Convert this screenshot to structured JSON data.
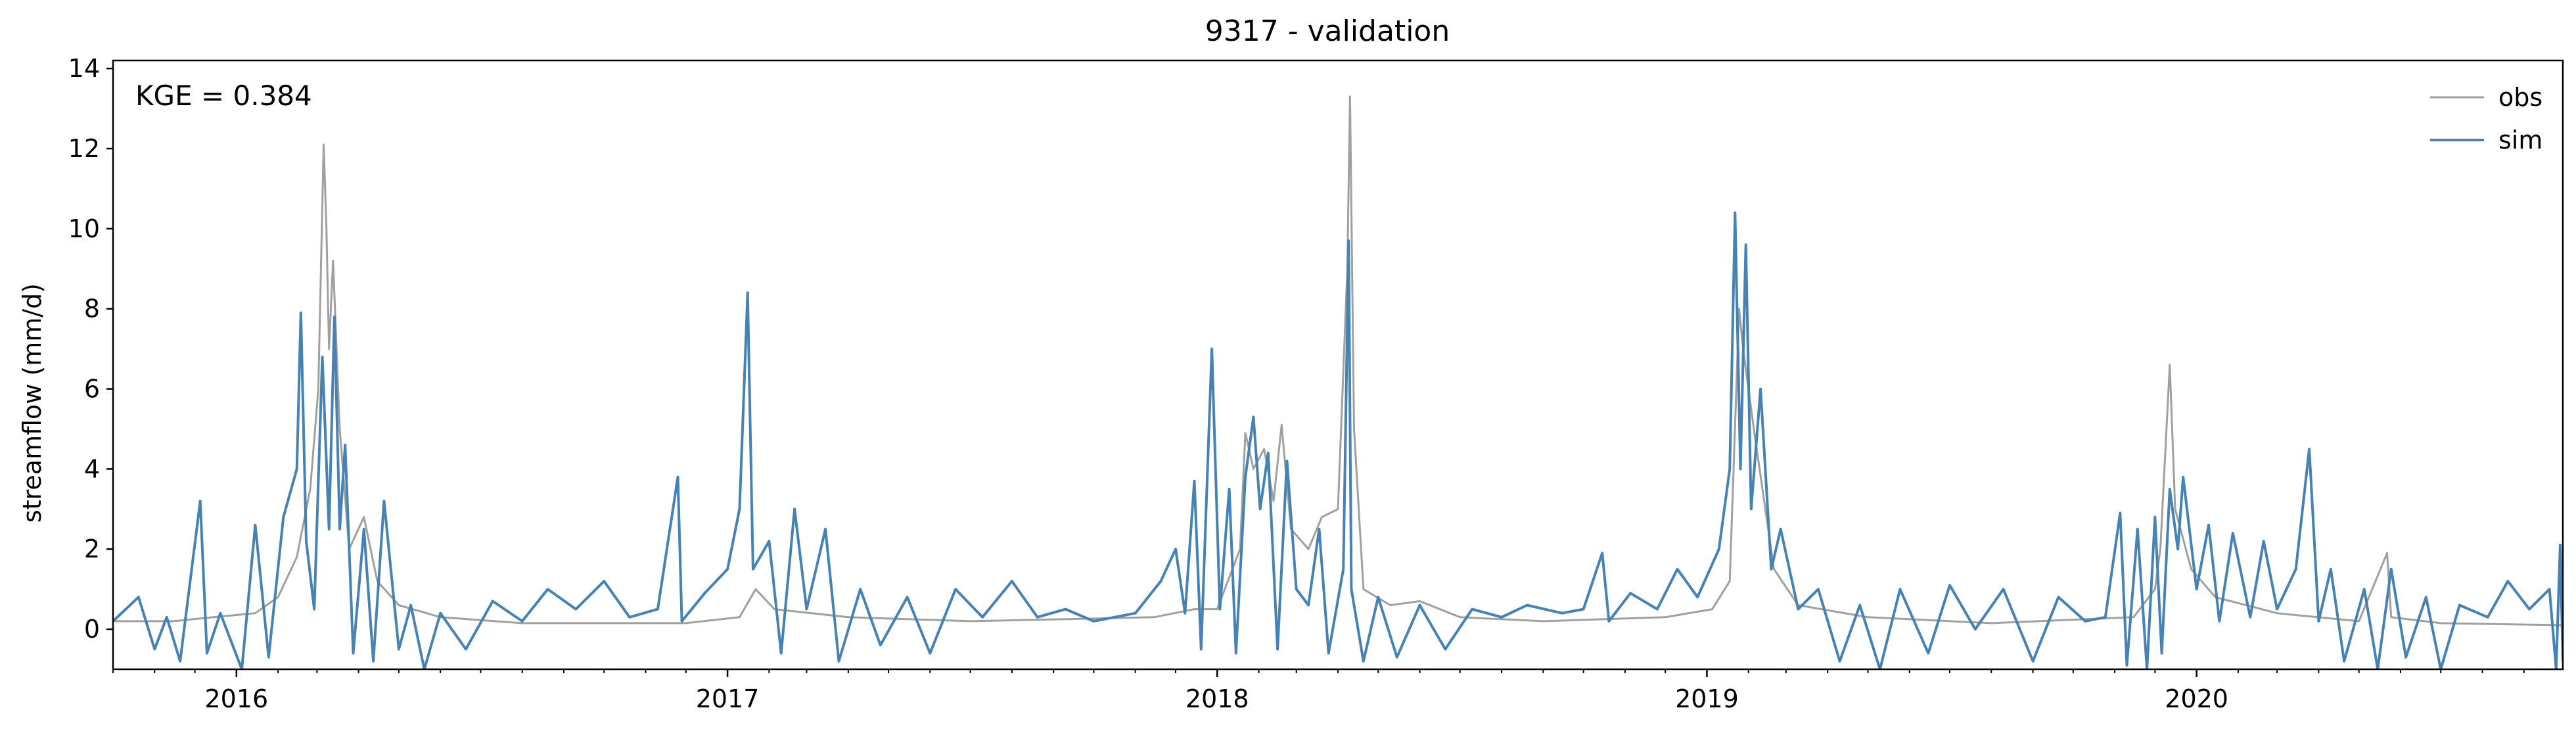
{
  "chart_data": {
    "type": "line",
    "title": "9317 - validation",
    "xlabel": "",
    "ylabel": "streamflow (mm/d)",
    "annotation": "KGE = 0.384",
    "xlim": [
      "2015-10-01",
      "2020-09-30"
    ],
    "ylim": [
      -1,
      14.2
    ],
    "x_ticks": [
      {
        "label": "2016",
        "date": "2016-01-01"
      },
      {
        "label": "2017",
        "date": "2017-01-01"
      },
      {
        "label": "2018",
        "date": "2018-01-01"
      },
      {
        "label": "2019",
        "date": "2019-01-01"
      },
      {
        "label": "2020",
        "date": "2020-01-01"
      }
    ],
    "y_ticks": [
      0,
      2,
      4,
      6,
      8,
      10,
      12,
      14
    ],
    "grid": false,
    "legend": {
      "position": "top-right",
      "frame": false
    },
    "series": [
      {
        "name": "obs",
        "color": "#a0a0a0",
        "points": [
          [
            "2015-10-01",
            0.2
          ],
          [
            "2015-11-15",
            0.2
          ],
          [
            "2015-12-15",
            0.3
          ],
          [
            "2016-01-15",
            0.4
          ],
          [
            "2016-02-01",
            0.8
          ],
          [
            "2016-02-15",
            1.8
          ],
          [
            "2016-02-25",
            3.5
          ],
          [
            "2016-03-02",
            6.0
          ],
          [
            "2016-03-06",
            12.1
          ],
          [
            "2016-03-08",
            10.1
          ],
          [
            "2016-03-10",
            7.0
          ],
          [
            "2016-03-13",
            9.2
          ],
          [
            "2016-03-18",
            5.0
          ],
          [
            "2016-03-25",
            2.0
          ],
          [
            "2016-04-05",
            2.8
          ],
          [
            "2016-04-15",
            1.2
          ],
          [
            "2016-05-01",
            0.6
          ],
          [
            "2016-06-01",
            0.3
          ],
          [
            "2016-08-01",
            0.15
          ],
          [
            "2016-12-01",
            0.15
          ],
          [
            "2017-01-10",
            0.3
          ],
          [
            "2017-01-22",
            1.0
          ],
          [
            "2017-02-05",
            0.5
          ],
          [
            "2017-04-01",
            0.3
          ],
          [
            "2017-07-01",
            0.2
          ],
          [
            "2017-11-15",
            0.3
          ],
          [
            "2017-12-15",
            0.5
          ],
          [
            "2018-01-01",
            0.5
          ],
          [
            "2018-01-18",
            2.0
          ],
          [
            "2018-01-22",
            4.9
          ],
          [
            "2018-01-28",
            4.0
          ],
          [
            "2018-02-05",
            4.5
          ],
          [
            "2018-02-12",
            3.2
          ],
          [
            "2018-02-18",
            5.1
          ],
          [
            "2018-02-25",
            2.5
          ],
          [
            "2018-03-10",
            2.0
          ],
          [
            "2018-03-20",
            2.8
          ],
          [
            "2018-04-01",
            3.0
          ],
          [
            "2018-04-08",
            9.0
          ],
          [
            "2018-04-10",
            13.3
          ],
          [
            "2018-04-13",
            5.0
          ],
          [
            "2018-04-20",
            1.0
          ],
          [
            "2018-05-10",
            0.6
          ],
          [
            "2018-06-01",
            0.7
          ],
          [
            "2018-07-01",
            0.3
          ],
          [
            "2018-09-01",
            0.2
          ],
          [
            "2018-12-01",
            0.3
          ],
          [
            "2019-01-05",
            0.5
          ],
          [
            "2019-01-18",
            1.2
          ],
          [
            "2019-01-25",
            8.0
          ],
          [
            "2019-01-28",
            7.0
          ],
          [
            "2019-02-05",
            5.0
          ],
          [
            "2019-02-20",
            1.5
          ],
          [
            "2019-03-10",
            0.6
          ],
          [
            "2019-05-01",
            0.3
          ],
          [
            "2019-08-01",
            0.15
          ],
          [
            "2019-11-15",
            0.3
          ],
          [
            "2019-12-01",
            1.0
          ],
          [
            "2019-12-05",
            2.0
          ],
          [
            "2019-12-12",
            6.6
          ],
          [
            "2019-12-16",
            3.0
          ],
          [
            "2019-12-28",
            1.5
          ],
          [
            "2020-01-15",
            0.8
          ],
          [
            "2020-03-01",
            0.4
          ],
          [
            "2020-05-01",
            0.2
          ],
          [
            "2020-05-22",
            1.9
          ],
          [
            "2020-05-25",
            0.3
          ],
          [
            "2020-07-01",
            0.15
          ],
          [
            "2020-09-30",
            0.1
          ]
        ]
      },
      {
        "name": "sim",
        "color": "#4682b4",
        "points": [
          [
            "2015-10-01",
            0.2
          ],
          [
            "2015-10-20",
            0.8
          ],
          [
            "2015-11-01",
            -0.5
          ],
          [
            "2015-11-10",
            0.3
          ],
          [
            "2015-11-20",
            -0.8
          ],
          [
            "2015-12-05",
            3.2
          ],
          [
            "2015-12-10",
            -0.6
          ],
          [
            "2015-12-20",
            0.4
          ],
          [
            "2016-01-05",
            -1.0
          ],
          [
            "2016-01-15",
            2.6
          ],
          [
            "2016-01-25",
            -0.7
          ],
          [
            "2016-02-05",
            2.8
          ],
          [
            "2016-02-15",
            4.0
          ],
          [
            "2016-02-18",
            7.9
          ],
          [
            "2016-02-22",
            2.2
          ],
          [
            "2016-02-28",
            0.5
          ],
          [
            "2016-03-05",
            6.8
          ],
          [
            "2016-03-10",
            2.5
          ],
          [
            "2016-03-14",
            7.8
          ],
          [
            "2016-03-18",
            2.5
          ],
          [
            "2016-03-22",
            4.6
          ],
          [
            "2016-03-28",
            -0.6
          ],
          [
            "2016-04-05",
            2.5
          ],
          [
            "2016-04-12",
            -0.8
          ],
          [
            "2016-04-20",
            3.2
          ],
          [
            "2016-05-01",
            -0.5
          ],
          [
            "2016-05-10",
            0.6
          ],
          [
            "2016-05-20",
            -1.0
          ],
          [
            "2016-06-01",
            0.4
          ],
          [
            "2016-06-20",
            -0.5
          ],
          [
            "2016-07-10",
            0.7
          ],
          [
            "2016-08-01",
            0.2
          ],
          [
            "2016-08-20",
            1.0
          ],
          [
            "2016-09-10",
            0.5
          ],
          [
            "2016-10-01",
            1.2
          ],
          [
            "2016-10-20",
            0.3
          ],
          [
            "2016-11-10",
            0.5
          ],
          [
            "2016-11-25",
            3.8
          ],
          [
            "2016-11-28",
            0.2
          ],
          [
            "2016-12-15",
            0.9
          ],
          [
            "2017-01-01",
            1.5
          ],
          [
            "2017-01-10",
            3.0
          ],
          [
            "2017-01-16",
            8.4
          ],
          [
            "2017-01-20",
            1.5
          ],
          [
            "2017-02-01",
            2.2
          ],
          [
            "2017-02-10",
            -0.6
          ],
          [
            "2017-02-20",
            3.0
          ],
          [
            "2017-03-01",
            0.5
          ],
          [
            "2017-03-15",
            2.5
          ],
          [
            "2017-03-25",
            -0.8
          ],
          [
            "2017-04-10",
            1.0
          ],
          [
            "2017-04-25",
            -0.4
          ],
          [
            "2017-05-15",
            0.8
          ],
          [
            "2017-06-01",
            -0.6
          ],
          [
            "2017-06-20",
            1.0
          ],
          [
            "2017-07-10",
            0.3
          ],
          [
            "2017-08-01",
            1.2
          ],
          [
            "2017-08-20",
            0.3
          ],
          [
            "2017-09-10",
            0.5
          ],
          [
            "2017-10-01",
            0.2
          ],
          [
            "2017-11-01",
            0.4
          ],
          [
            "2017-11-20",
            1.2
          ],
          [
            "2017-12-01",
            2.0
          ],
          [
            "2017-12-08",
            0.4
          ],
          [
            "2017-12-15",
            3.7
          ],
          [
            "2017-12-20",
            -0.5
          ],
          [
            "2017-12-28",
            7.0
          ],
          [
            "2018-01-03",
            0.5
          ],
          [
            "2018-01-10",
            3.5
          ],
          [
            "2018-01-15",
            -0.6
          ],
          [
            "2018-01-22",
            3.8
          ],
          [
            "2018-01-28",
            5.3
          ],
          [
            "2018-02-02",
            3.0
          ],
          [
            "2018-02-08",
            4.4
          ],
          [
            "2018-02-15",
            -0.5
          ],
          [
            "2018-02-22",
            4.2
          ],
          [
            "2018-03-01",
            1.0
          ],
          [
            "2018-03-10",
            0.6
          ],
          [
            "2018-03-18",
            2.5
          ],
          [
            "2018-03-25",
            -0.6
          ],
          [
            "2018-04-05",
            1.5
          ],
          [
            "2018-04-09",
            9.7
          ],
          [
            "2018-04-11",
            1.0
          ],
          [
            "2018-04-20",
            -0.8
          ],
          [
            "2018-05-01",
            0.8
          ],
          [
            "2018-05-15",
            -0.7
          ],
          [
            "2018-06-01",
            0.6
          ],
          [
            "2018-06-20",
            -0.5
          ],
          [
            "2018-07-10",
            0.5
          ],
          [
            "2018-08-01",
            0.3
          ],
          [
            "2018-08-20",
            0.6
          ],
          [
            "2018-09-15",
            0.4
          ],
          [
            "2018-10-01",
            0.5
          ],
          [
            "2018-10-15",
            1.9
          ],
          [
            "2018-10-20",
            0.2
          ],
          [
            "2018-11-05",
            0.9
          ],
          [
            "2018-11-25",
            0.5
          ],
          [
            "2018-12-10",
            1.5
          ],
          [
            "2018-12-25",
            0.8
          ],
          [
            "2019-01-10",
            2.0
          ],
          [
            "2019-01-18",
            4.0
          ],
          [
            "2019-01-22",
            10.4
          ],
          [
            "2019-01-26",
            4.0
          ],
          [
            "2019-01-30",
            9.6
          ],
          [
            "2019-02-03",
            3.0
          ],
          [
            "2019-02-10",
            6.0
          ],
          [
            "2019-02-18",
            1.5
          ],
          [
            "2019-02-25",
            2.5
          ],
          [
            "2019-03-10",
            0.5
          ],
          [
            "2019-03-25",
            1.0
          ],
          [
            "2019-04-10",
            -0.8
          ],
          [
            "2019-04-25",
            0.6
          ],
          [
            "2019-05-10",
            -1.0
          ],
          [
            "2019-05-25",
            1.0
          ],
          [
            "2019-06-15",
            -0.6
          ],
          [
            "2019-07-01",
            1.1
          ],
          [
            "2019-07-20",
            0.0
          ],
          [
            "2019-08-10",
            1.0
          ],
          [
            "2019-09-01",
            -0.8
          ],
          [
            "2019-09-20",
            0.8
          ],
          [
            "2019-10-10",
            0.2
          ],
          [
            "2019-10-25",
            0.3
          ],
          [
            "2019-11-05",
            2.9
          ],
          [
            "2019-11-10",
            -0.9
          ],
          [
            "2019-11-18",
            2.5
          ],
          [
            "2019-11-25",
            -1.0
          ],
          [
            "2019-12-01",
            2.8
          ],
          [
            "2019-12-06",
            -0.6
          ],
          [
            "2019-12-12",
            3.5
          ],
          [
            "2019-12-18",
            2.0
          ],
          [
            "2019-12-22",
            3.8
          ],
          [
            "2020-01-01",
            1.0
          ],
          [
            "2020-01-10",
            2.6
          ],
          [
            "2020-01-18",
            0.2
          ],
          [
            "2020-01-28",
            2.4
          ],
          [
            "2020-02-10",
            0.3
          ],
          [
            "2020-02-20",
            2.2
          ],
          [
            "2020-03-01",
            0.5
          ],
          [
            "2020-03-15",
            1.5
          ],
          [
            "2020-03-25",
            4.5
          ],
          [
            "2020-04-01",
            0.2
          ],
          [
            "2020-04-10",
            1.5
          ],
          [
            "2020-04-20",
            -0.8
          ],
          [
            "2020-05-05",
            1.0
          ],
          [
            "2020-05-15",
            -1.0
          ],
          [
            "2020-05-25",
            1.5
          ],
          [
            "2020-06-05",
            -0.7
          ],
          [
            "2020-06-20",
            0.8
          ],
          [
            "2020-07-01",
            -1.0
          ],
          [
            "2020-07-15",
            0.6
          ],
          [
            "2020-08-05",
            0.3
          ],
          [
            "2020-08-20",
            1.2
          ],
          [
            "2020-09-05",
            0.5
          ],
          [
            "2020-09-20",
            1.0
          ],
          [
            "2020-09-25",
            -1.0
          ],
          [
            "2020-09-28",
            2.1
          ],
          [
            "2020-09-30",
            -0.8
          ]
        ]
      }
    ]
  }
}
